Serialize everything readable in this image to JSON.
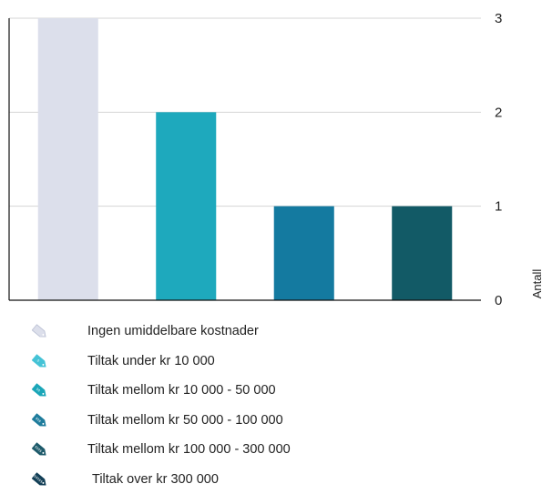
{
  "chart_data": {
    "type": "bar",
    "categories": [
      "Ingen umiddelbare kostnader",
      "Tiltak under kr 10 000",
      "Tiltak mellom kr 10 000 - 50 000",
      "Tiltak mellom kr 50 000 - 100 000"
    ],
    "values": [
      3,
      2,
      1,
      1
    ],
    "colors": [
      "#dcdfeb",
      "#1ea9bd",
      "#147aa0",
      "#125a66"
    ],
    "ylabel": "Antall",
    "ylim": [
      0,
      3
    ],
    "yticks": [
      0,
      1,
      2,
      3
    ],
    "grid": true,
    "y_axis_side": "right"
  },
  "legend": [
    {
      "label": "Ingen umiddelbare kostnader",
      "color": "#dcdfeb",
      "tag_text": ""
    },
    {
      "label": "Tiltak under kr 10 000",
      "color": "#45c3d6",
      "tag_text": "$"
    },
    {
      "label": "Tiltak mellom kr 10 000 - 50 000",
      "color": "#1aa6b8",
      "tag_text": "$$"
    },
    {
      "label": "Tiltak mellom kr 50 000 - 100 000",
      "color": "#1e7c9c",
      "tag_text": "$$$"
    },
    {
      "label": "Tiltak mellom kr 100 000 - 300 000",
      "color": "#1d5a6a",
      "tag_text": "$$$$"
    },
    {
      "label": "Tiltak over kr  300 000",
      "color": "#123f56",
      "tag_text": "$$$$$"
    }
  ]
}
